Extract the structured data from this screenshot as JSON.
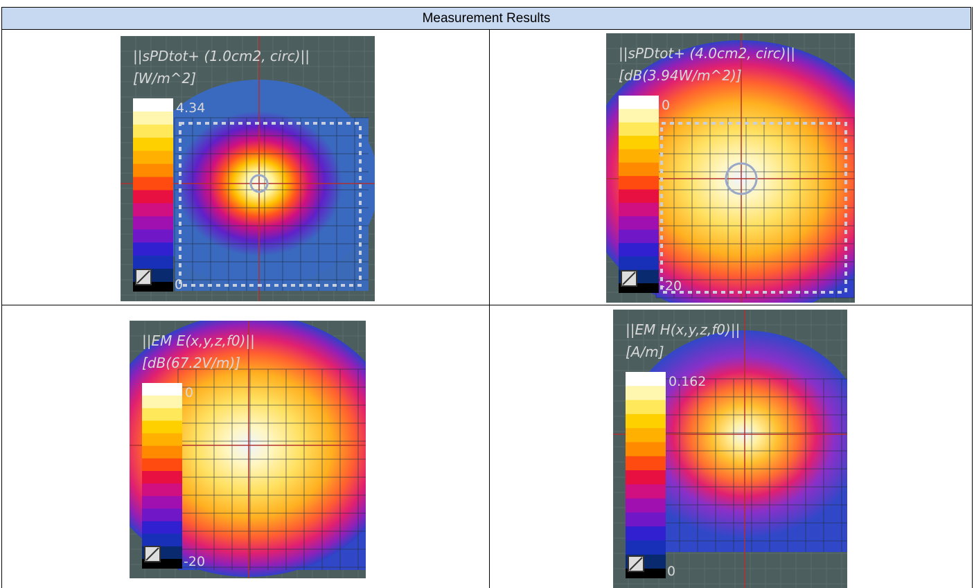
{
  "table": {
    "header": "Measurement Results",
    "cells": [
      {
        "title": "||sPDtot+ (1.0cm2, circ)||",
        "unit": "[W/m^2]",
        "max": "4.34",
        "min": "0"
      },
      {
        "title": "||sPDtot+ (4.0cm2, circ)||",
        "unit": "[dB(3.94W/m^2)]",
        "max": "0",
        "min": "-20"
      },
      {
        "title": "||EM E(x,y,z,f0)||",
        "unit": "[dB(67.2V/m)]",
        "max": "0",
        "min": "-20"
      },
      {
        "title": "||EM H(x,y,z,f0)||",
        "unit": "[A/m]",
        "max": "0.162",
        "min": "0"
      }
    ]
  }
}
